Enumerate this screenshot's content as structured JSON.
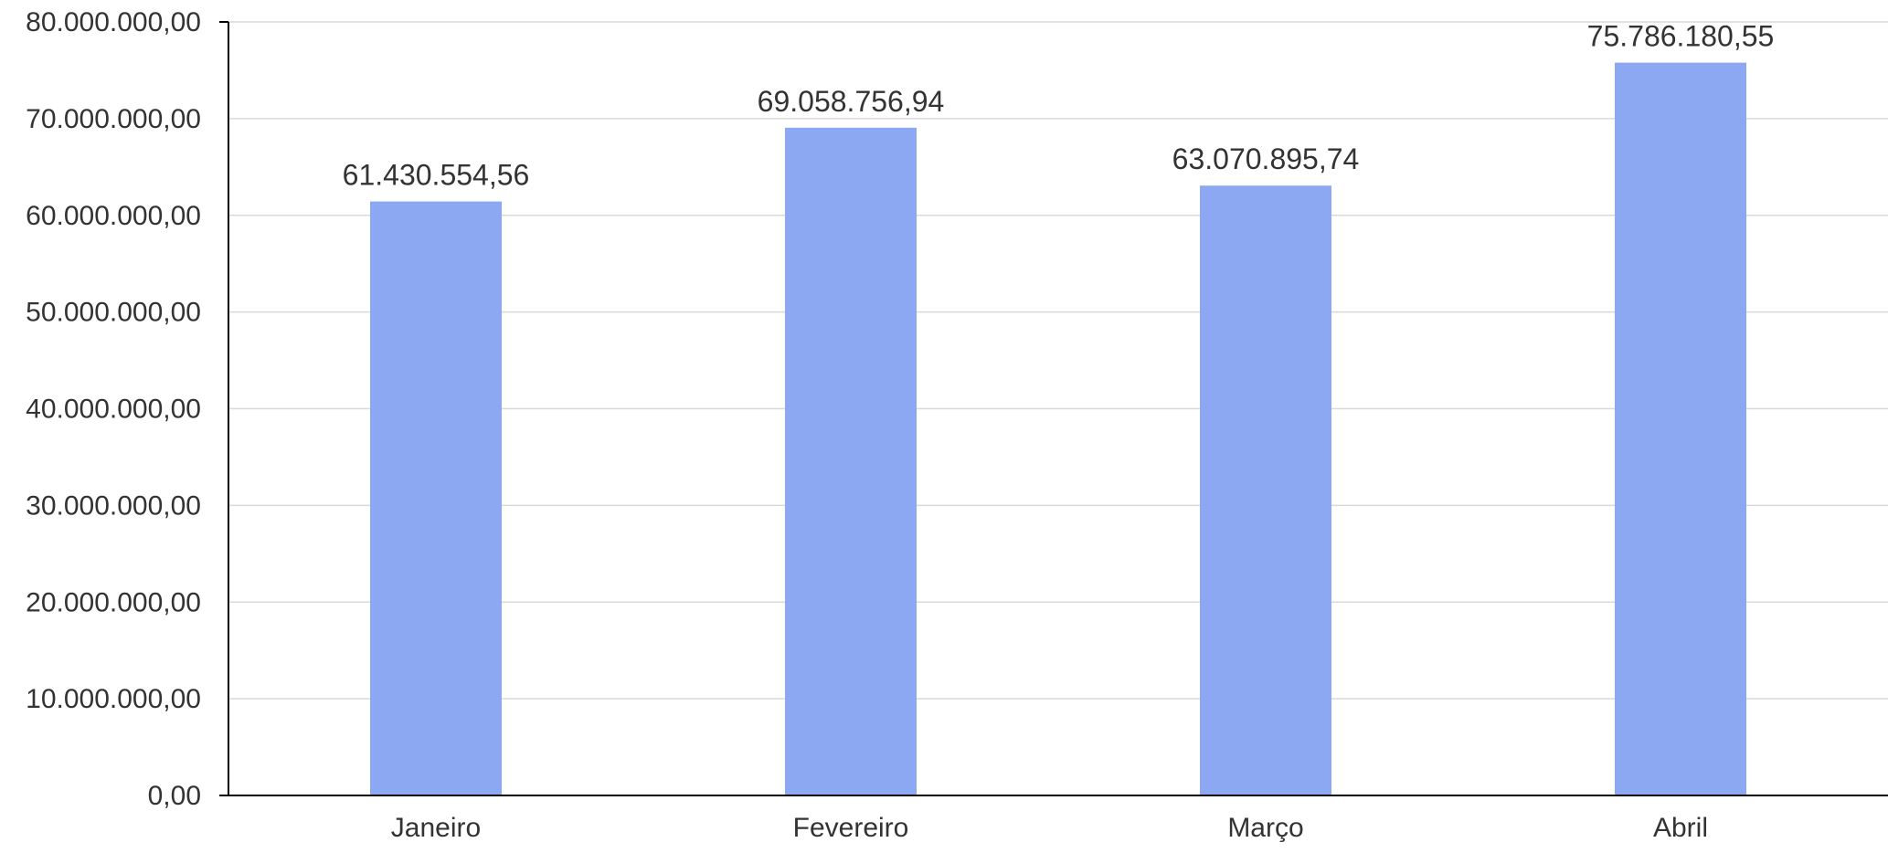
{
  "chart_data": {
    "type": "bar",
    "categories": [
      "Janeiro",
      "Fevereiro",
      "Março",
      "Abril"
    ],
    "values": [
      61430554.56,
      69058756.94,
      63070895.74,
      75786180.55
    ],
    "data_labels": [
      "61.430.554,56",
      "69.058.756,94",
      "63.070.895,74",
      "75.786.180,55"
    ],
    "ylim": [
      0,
      80000000
    ],
    "yticks": [
      0,
      10000000,
      20000000,
      30000000,
      40000000,
      50000000,
      60000000,
      70000000,
      80000000
    ],
    "ytick_labels": [
      "0,00",
      "10.000.000,00",
      "20.000.000,00",
      "30.000.000,00",
      "40.000.000,00",
      "50.000.000,00",
      "60.000.000,00",
      "70.000.000,00",
      "80.000.000,00"
    ],
    "title": "",
    "xlabel": "",
    "ylabel": "",
    "grid": true,
    "legend": "none",
    "colors": {
      "bar": "#8da8f2",
      "gridline": "#d9d9d9",
      "axis": "#000000",
      "text": "#333333"
    }
  }
}
